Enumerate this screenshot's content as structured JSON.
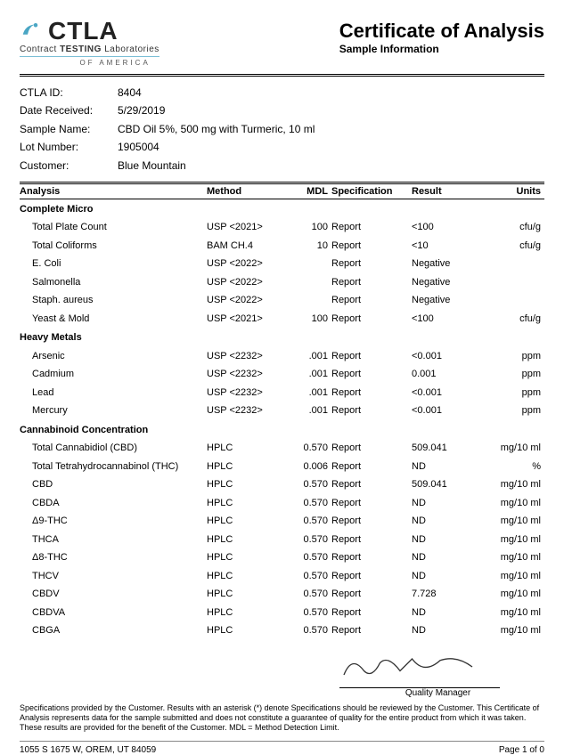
{
  "logo": {
    "text": "CTLA",
    "sub1_a": "Contract ",
    "sub1_b": "TESTING",
    "sub1_c": " Laboratories",
    "sub2": "OF AMERICA",
    "swoosh_color": "#4aa6c4"
  },
  "title": {
    "main": "Certificate of Analysis",
    "sub": "Sample Information"
  },
  "info": {
    "ctla_id_label": "CTLA ID:",
    "ctla_id": "8404",
    "date_received_label": "Date Received:",
    "date_received": "5/29/2019",
    "sample_name_label": "Sample Name:",
    "sample_name": "CBD Oil 5%, 500 mg with Turmeric, 10 ml",
    "lot_number_label": "Lot Number:",
    "lot_number": "1905004",
    "customer_label": "Customer:",
    "customer": "Blue Mountain"
  },
  "headers": {
    "analysis": "Analysis",
    "method": "Method",
    "mdl": "MDL",
    "spec": "Specification",
    "result": "Result",
    "units": "Units"
  },
  "sections": [
    {
      "name": "Complete Micro",
      "rows": [
        {
          "a": "Total Plate Count",
          "m": "USP <2021>",
          "d": "100",
          "s": "Report",
          "r": "<100",
          "u": "cfu/g"
        },
        {
          "a": "Total Coliforms",
          "m": "BAM CH.4",
          "d": "10",
          "s": "Report",
          "r": "<10",
          "u": "cfu/g"
        },
        {
          "a": "E. Coli",
          "m": "USP <2022>",
          "d": "",
          "s": "Report",
          "r": "Negative",
          "u": ""
        },
        {
          "a": "Salmonella",
          "m": "USP <2022>",
          "d": "",
          "s": "Report",
          "r": "Negative",
          "u": ""
        },
        {
          "a": "Staph. aureus",
          "m": "USP <2022>",
          "d": "",
          "s": "Report",
          "r": "Negative",
          "u": ""
        },
        {
          "a": "Yeast & Mold",
          "m": "USP <2021>",
          "d": "100",
          "s": "Report",
          "r": "<100",
          "u": "cfu/g"
        }
      ]
    },
    {
      "name": "Heavy Metals",
      "rows": [
        {
          "a": "Arsenic",
          "m": "USP <2232>",
          "d": ".001",
          "s": "Report",
          "r": "<0.001",
          "u": "ppm"
        },
        {
          "a": "Cadmium",
          "m": "USP <2232>",
          "d": ".001",
          "s": "Report",
          "r": "0.001",
          "u": "ppm"
        },
        {
          "a": "Lead",
          "m": "USP <2232>",
          "d": ".001",
          "s": "Report",
          "r": "<0.001",
          "u": "ppm"
        },
        {
          "a": "Mercury",
          "m": "USP <2232>",
          "d": ".001",
          "s": "Report",
          "r": "<0.001",
          "u": "ppm"
        }
      ]
    },
    {
      "name": "Cannabinoid Concentration",
      "rows": [
        {
          "a": "Total Cannabidiol (CBD)",
          "m": "HPLC",
          "d": "0.570",
          "s": "Report",
          "r": "509.041",
          "u": "mg/10 ml"
        },
        {
          "a": "Total Tetrahydrocannabinol (THC)",
          "m": "HPLC",
          "d": "0.006",
          "s": "Report",
          "r": "ND",
          "u": "%"
        },
        {
          "a": "CBD",
          "m": "HPLC",
          "d": "0.570",
          "s": "Report",
          "r": "509.041",
          "u": "mg/10 ml"
        },
        {
          "a": "CBDA",
          "m": "HPLC",
          "d": "0.570",
          "s": "Report",
          "r": "ND",
          "u": "mg/10 ml"
        },
        {
          "a": "Δ9-THC",
          "m": "HPLC",
          "d": "0.570",
          "s": "Report",
          "r": "ND",
          "u": "mg/10 ml"
        },
        {
          "a": "THCA",
          "m": "HPLC",
          "d": "0.570",
          "s": "Report",
          "r": "ND",
          "u": "mg/10 ml"
        },
        {
          "a": "Δ8-THC",
          "m": "HPLC",
          "d": "0.570",
          "s": "Report",
          "r": "ND",
          "u": "mg/10 ml"
        },
        {
          "a": "THCV",
          "m": "HPLC",
          "d": "0.570",
          "s": "Report",
          "r": "ND",
          "u": "mg/10 ml"
        },
        {
          "a": "CBDV",
          "m": "HPLC",
          "d": "0.570",
          "s": "Report",
          "r": "7.728",
          "u": "mg/10 ml"
        },
        {
          "a": "CBDVA",
          "m": "HPLC",
          "d": "0.570",
          "s": "Report",
          "r": "ND",
          "u": "mg/10 ml"
        },
        {
          "a": "CBGA",
          "m": "HPLC",
          "d": "0.570",
          "s": "Report",
          "r": "ND",
          "u": "mg/10 ml"
        }
      ]
    }
  ],
  "signature": {
    "label": "Quality Manager"
  },
  "disclaimer": "Specifications provided by the Customer. Results with an asterisk (*) denote Specifications should be reviewed by the Customer. This Certificate of Analysis represents data for the sample submitted and does not constitute a guarantee of quality for the entire product from which it was taken. These results are provided for the benefit of the Customer.  MDL = Method Detection Limit.",
  "footer": {
    "address": "1055 S 1675 W, OREM, UT 84059",
    "page": "Page 1 of 0"
  },
  "colors": {
    "text": "#000000",
    "bg": "#ffffff",
    "rule": "#000000"
  }
}
